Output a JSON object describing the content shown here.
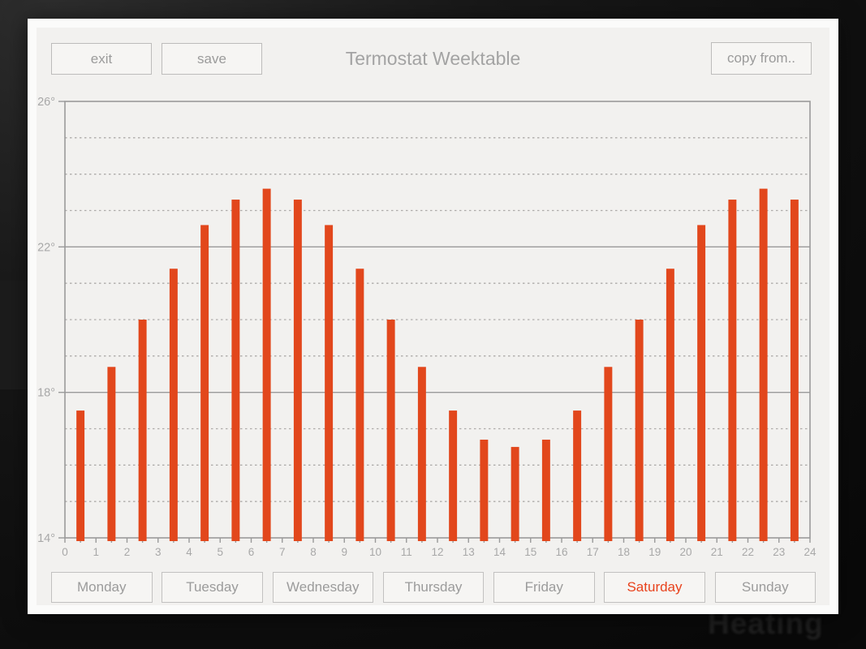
{
  "window": {
    "title": "Termostat Weektable"
  },
  "toolbar": {
    "exit_label": "exit",
    "save_label": "save",
    "copy_from_label": "copy from.."
  },
  "footer": {
    "days": [
      {
        "label": "Monday",
        "selected": false
      },
      {
        "label": "Tuesday",
        "selected": false
      },
      {
        "label": "Wednesday",
        "selected": false
      },
      {
        "label": "Thursday",
        "selected": false
      },
      {
        "label": "Friday",
        "selected": false
      },
      {
        "label": "Saturday",
        "selected": true
      },
      {
        "label": "Sunday",
        "selected": false
      }
    ]
  },
  "background": {
    "watermark": "Heating"
  },
  "colors": {
    "accent": "#e2471c",
    "selected_day": "#e8421c",
    "axis": "#9a9a9a",
    "dashed_grid": "#aeacaa",
    "tick_label": "#a8a8a8",
    "panel_bg": "#f2f1ef",
    "frame": "#fbfbfa"
  },
  "chart_data": {
    "type": "bar",
    "x": [
      0,
      1,
      2,
      3,
      4,
      5,
      6,
      7,
      8,
      9,
      10,
      11,
      12,
      13,
      14,
      15,
      16,
      17,
      18,
      19,
      20,
      21,
      22,
      23
    ],
    "values": [
      17.5,
      18.7,
      20.0,
      21.4,
      22.6,
      23.3,
      23.6,
      23.3,
      22.6,
      21.4,
      20.0,
      18.7,
      17.5,
      16.7,
      16.5,
      16.7,
      17.5,
      18.7,
      20.0,
      21.4,
      22.6,
      23.3,
      23.6,
      23.3
    ],
    "title": "",
    "xlabel": "",
    "ylabel": "",
    "xlim": [
      0,
      24
    ],
    "ylim": [
      14,
      26
    ],
    "bar_width_hours": 0.26,
    "bar_center_offset_hours": 0.5,
    "x_tick_labels": [
      "0",
      "1",
      "2",
      "3",
      "4",
      "5",
      "6",
      "7",
      "8",
      "9",
      "10",
      "11",
      "12",
      "13",
      "14",
      "15",
      "16",
      "17",
      "18",
      "19",
      "20",
      "21",
      "22",
      "23",
      "24"
    ],
    "x_minor_tick_step": 0.5,
    "y_ticks": [
      {
        "value": 26,
        "label": "26°"
      },
      {
        "value": 22,
        "label": "22°"
      },
      {
        "value": 18,
        "label": "18°"
      },
      {
        "value": 14,
        "label": "14°"
      }
    ],
    "solid_gridlines": [
      18,
      22
    ],
    "dashed_gridline_step": 1,
    "grid": true,
    "legend": "none",
    "bar_color": "#e2471c"
  }
}
